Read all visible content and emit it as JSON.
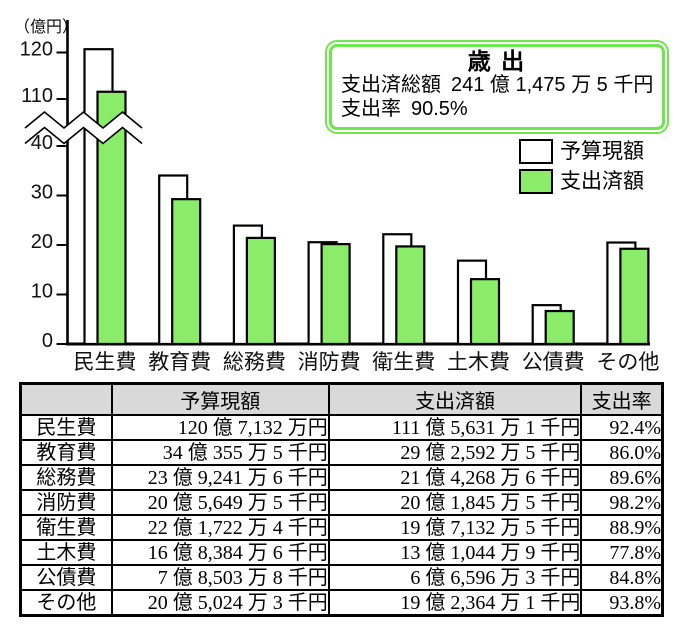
{
  "summary": {
    "title": "歳 出",
    "total_label": "支出済総額",
    "total_value": "241 億 1,475 万 5 千円",
    "rate_label": "支出率",
    "rate_value": "90.5%",
    "border_color": "#6fe64e"
  },
  "chart_data": {
    "type": "bar",
    "title": "歳 出",
    "categories": [
      "民生費",
      "教育費",
      "総務費",
      "消防費",
      "衛生費",
      "土木費",
      "公債費",
      "その他"
    ],
    "series": [
      {
        "name": "予算現額",
        "color": "#ffffff",
        "values": [
          120.71,
          34.04,
          23.92,
          20.56,
          22.17,
          16.84,
          7.85,
          20.5
        ]
      },
      {
        "name": "支出済額",
        "color": "#8bec6a",
        "values": [
          111.56,
          29.26,
          21.43,
          20.18,
          19.71,
          13.1,
          6.66,
          19.24
        ]
      }
    ],
    "xlabel": "",
    "ylabel": "（億円）",
    "yticks": [
      0,
      10,
      20,
      30,
      40,
      110,
      120
    ],
    "ylim": [
      0,
      125
    ],
    "axis_break": [
      45,
      105
    ],
    "grid": false,
    "legend_position": "right",
    "bar_border_color": "#000000"
  },
  "table": {
    "headers": {
      "category": "",
      "budget": "予算現額",
      "spent": "支出済額",
      "rate": "支出率"
    },
    "rows": [
      {
        "category": "民生費",
        "budget": "120 億 7,132 万円",
        "spent": "111 億 5,631 万 1 千円",
        "rate": "92.4%"
      },
      {
        "category": "教育費",
        "budget": "34 億 355 万 5 千円",
        "spent": "29 億 2,592 万 5 千円",
        "rate": "86.0%"
      },
      {
        "category": "総務費",
        "budget": "23 億 9,241 万 6 千円",
        "spent": "21 億 4,268 万 6 千円",
        "rate": "89.6%"
      },
      {
        "category": "消防費",
        "budget": "20 億 5,649 万 5 千円",
        "spent": "20 億 1,845 万 5 千円",
        "rate": "98.2%"
      },
      {
        "category": "衛生費",
        "budget": "22 億 1,722 万 4 千円",
        "spent": "19 億 7,132 万 5 千円",
        "rate": "88.9%"
      },
      {
        "category": "土木費",
        "budget": "16 億 8,384 万 6 千円",
        "spent": "13 億 1,044 万 9 千円",
        "rate": "77.8%"
      },
      {
        "category": "公債費",
        "budget": "7 億 8,503 万 8 千円",
        "spent": "6 億 6,596 万 3 千円",
        "rate": "84.8%"
      },
      {
        "category": "その他",
        "budget": "20 億 5,024 万 3 千円",
        "spent": "19 億 2,364 万 1 千円",
        "rate": "93.8%"
      }
    ]
  }
}
